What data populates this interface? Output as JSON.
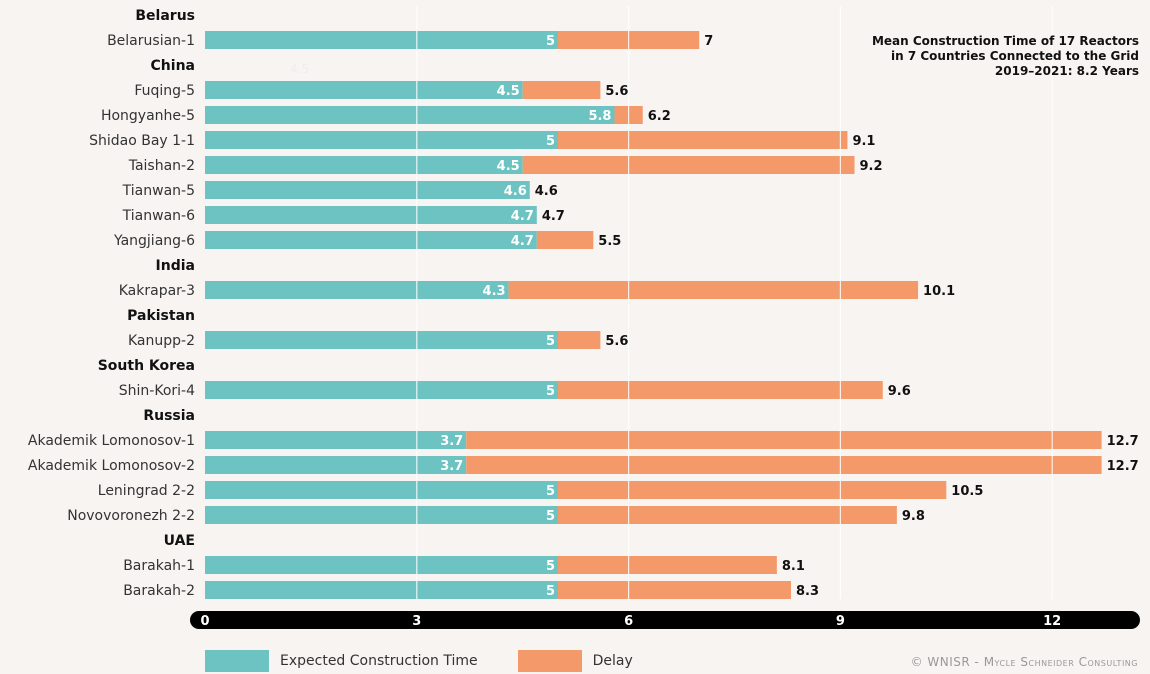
{
  "note": {
    "line1": "Mean Construction Time of 17 Reactors",
    "line2": "in 7 Countries Connected to the Grid",
    "line3": "2019–2021: 8.2 Years"
  },
  "legend": {
    "expected": "Expected Construction Time",
    "delay": "Delay"
  },
  "credit": "© WNISR - Mycle Schneider Consulting",
  "ghost_label": "4.5",
  "colors": {
    "expected": "#6cc3c2",
    "delay": "#f4996a",
    "axis": "#000000",
    "background": "#f8f4f2"
  },
  "chart_data": {
    "type": "bar",
    "orientation": "horizontal",
    "stacked": true,
    "xlim": [
      0,
      13
    ],
    "xticks": [
      0,
      3,
      6,
      9,
      12
    ],
    "series": [
      {
        "name": "Expected Construction Time"
      },
      {
        "name": "Delay"
      }
    ],
    "groups": [
      {
        "country": "Belarus",
        "reactors": [
          {
            "name": "Belarusian-1",
            "expected": 5,
            "total": 7
          }
        ]
      },
      {
        "country": "China",
        "reactors": [
          {
            "name": "Fuqing-5",
            "expected": 4.5,
            "total": 5.6
          },
          {
            "name": "Hongyanhe-5",
            "expected": 5.8,
            "total": 6.2
          },
          {
            "name": "Shidao Bay 1-1",
            "expected": 5,
            "total": 9.1
          },
          {
            "name": "Taishan-2",
            "expected": 4.5,
            "total": 9.2
          },
          {
            "name": "Tianwan-5",
            "expected": 4.6,
            "total": 4.6
          },
          {
            "name": "Tianwan-6",
            "expected": 4.7,
            "total": 4.7
          },
          {
            "name": "Yangjiang-6",
            "expected": 4.7,
            "total": 5.5
          }
        ]
      },
      {
        "country": "India",
        "reactors": [
          {
            "name": "Kakrapar-3",
            "expected": 4.3,
            "total": 10.1
          }
        ]
      },
      {
        "country": "Pakistan",
        "reactors": [
          {
            "name": "Kanupp-2",
            "expected": 5,
            "total": 5.6
          }
        ]
      },
      {
        "country": "South Korea",
        "reactors": [
          {
            "name": "Shin-Kori-4",
            "expected": 5,
            "total": 9.6
          }
        ]
      },
      {
        "country": "Russia",
        "reactors": [
          {
            "name": "Akademik Lomonosov-1",
            "expected": 3.7,
            "total": 12.7
          },
          {
            "name": "Akademik Lomonosov-2",
            "expected": 3.7,
            "total": 12.7
          },
          {
            "name": "Leningrad 2-2",
            "expected": 5,
            "total": 10.5
          },
          {
            "name": "Novovoronezh 2-2",
            "expected": 5,
            "total": 9.8
          }
        ]
      },
      {
        "country": "UAE",
        "reactors": [
          {
            "name": "Barakah-1",
            "expected": 5,
            "total": 8.1
          },
          {
            "name": "Barakah-2",
            "expected": 5,
            "total": 8.3
          }
        ]
      }
    ]
  }
}
